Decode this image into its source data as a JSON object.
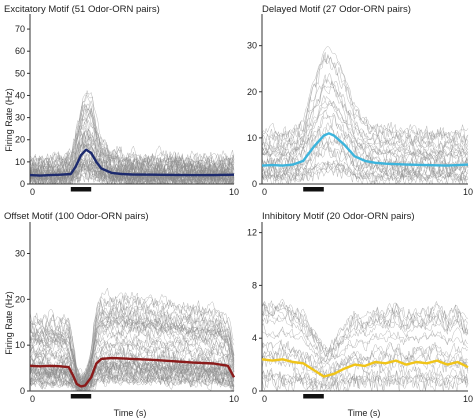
{
  "figure": {
    "y_axis_label": "Firing Rate (Hz)",
    "x_axis_label": "Time (s)"
  },
  "chart_data": [
    {
      "type": "line",
      "title": "Excitatory Motif (51 Odor-ORN pairs)",
      "xlabel": "",
      "ylabel": "Firing Rate (Hz)",
      "xlim": [
        0,
        10
      ],
      "ylim": [
        0,
        75
      ],
      "yticks": [
        0,
        10,
        20,
        30,
        40,
        50,
        60,
        70
      ],
      "x_tick_labels": [
        {
          "x": 0,
          "label": "0"
        },
        {
          "x": 10,
          "label": "10"
        }
      ],
      "stimulus": {
        "start": 2,
        "end": 3
      },
      "mean_color": "#1c2a6e",
      "background_color": "#8a8a8a",
      "n_background_traces": 51,
      "x": [
        0,
        0.5,
        1,
        1.5,
        2,
        2.25,
        2.5,
        2.75,
        3,
        3.25,
        3.5,
        4,
        4.5,
        5,
        6,
        7,
        8,
        9,
        10
      ],
      "series": [
        {
          "values": [
            4,
            3.8,
            4,
            4.2,
            4.5,
            8,
            13,
            15.5,
            14,
            10,
            7,
            5,
            4.5,
            4.3,
            4.2,
            4.1,
            4,
            4,
            4.2
          ]
        }
      ]
    },
    {
      "type": "line",
      "title": "Delayed Motif (27 Odor-ORN pairs)",
      "xlabel": "",
      "ylabel": "",
      "xlim": [
        0,
        10
      ],
      "ylim": [
        0,
        36
      ],
      "yticks": [
        0,
        10,
        20,
        30
      ],
      "x_tick_labels": [
        {
          "x": 0,
          "label": "0"
        },
        {
          "x": 10,
          "label": "10"
        }
      ],
      "stimulus": {
        "start": 2,
        "end": 3
      },
      "mean_color": "#3cb4dc",
      "background_color": "#8a8a8a",
      "n_background_traces": 27,
      "x": [
        0,
        0.5,
        1,
        1.5,
        2,
        2.5,
        3,
        3.25,
        3.5,
        4,
        4.5,
        5,
        5.5,
        6,
        7,
        8,
        9,
        10
      ],
      "series": [
        {
          "values": [
            4,
            4.1,
            4,
            4.2,
            5,
            8,
            10.5,
            11,
            10.5,
            8.5,
            6,
            5,
            4.6,
            4.4,
            4.2,
            4.1,
            4,
            4.2
          ]
        }
      ]
    },
    {
      "type": "line",
      "title": "Offset Motif (100 Odor-ORN pairs)",
      "xlabel": "Time (s)",
      "ylabel": "Firing Rate (Hz)",
      "xlim": [
        0,
        10
      ],
      "ylim": [
        0,
        36
      ],
      "yticks": [
        0,
        10,
        20,
        30
      ],
      "x_tick_labels": [
        {
          "x": 0,
          "label": "0"
        },
        {
          "x": 10,
          "label": "10"
        }
      ],
      "stimulus": {
        "start": 2,
        "end": 3
      },
      "mean_color": "#8b1a1a",
      "background_color": "#8a8a8a",
      "n_background_traces": 100,
      "x": [
        0,
        0.5,
        1,
        1.5,
        1.9,
        2.1,
        2.3,
        2.5,
        2.7,
        3,
        3.25,
        3.5,
        4,
        5,
        6,
        7,
        8,
        9,
        9.7,
        10
      ],
      "series": [
        {
          "values": [
            5.5,
            5.4,
            5.5,
            5.4,
            5.2,
            3.5,
            1.5,
            1,
            1.2,
            3,
            6,
            7,
            7.2,
            7,
            6.8,
            6.5,
            6.2,
            6,
            5.5,
            3
          ]
        }
      ]
    },
    {
      "type": "line",
      "title": "Inhibitory Motif  (20 Odor-ORN pairs)",
      "xlabel": "Time (s)",
      "ylabel": "",
      "xlim": [
        0,
        10
      ],
      "ylim": [
        0,
        12.5
      ],
      "yticks": [
        0,
        4,
        8,
        12
      ],
      "x_tick_labels": [
        {
          "x": 0,
          "label": "0"
        },
        {
          "x": 10,
          "label": "10"
        }
      ],
      "stimulus": {
        "start": 2,
        "end": 3
      },
      "mean_color": "#f0c419",
      "background_color": "#8a8a8a",
      "n_background_traces": 20,
      "x": [
        0,
        0.5,
        1,
        1.5,
        2,
        2.5,
        3,
        3.5,
        4,
        4.5,
        5,
        5.5,
        6,
        6.5,
        7,
        7.5,
        8,
        8.5,
        9,
        9.5,
        10
      ],
      "series": [
        {
          "values": [
            2.4,
            2.3,
            2.4,
            2.2,
            2.1,
            1.6,
            1.1,
            1.3,
            1.7,
            2.0,
            1.9,
            2.2,
            2.1,
            2.3,
            2.0,
            2.2,
            2.1,
            2.3,
            2.0,
            2.2,
            1.8
          ]
        }
      ]
    }
  ]
}
